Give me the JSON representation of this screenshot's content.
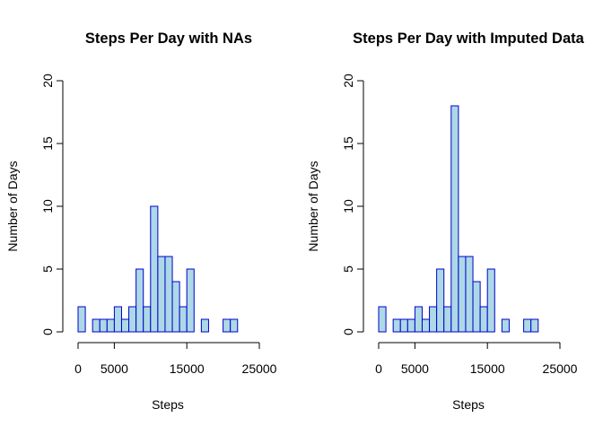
{
  "chart_data": [
    {
      "type": "bar",
      "title": "Steps Per Day with NAs",
      "xlabel": "Steps",
      "ylabel": "Number of Days",
      "xlim": [
        0,
        25000
      ],
      "ylim": [
        0,
        20
      ],
      "x_ticks": [
        "0",
        "5000",
        "15000",
        "25000"
      ],
      "y_ticks": [
        "0",
        "5",
        "10",
        "15",
        "20"
      ],
      "bin_width": 1000,
      "bin_start": 0,
      "values": [
        2,
        0,
        1,
        1,
        1,
        2,
        1,
        2,
        5,
        2,
        10,
        6,
        6,
        4,
        2,
        5,
        0,
        1,
        0,
        0,
        1,
        1
      ],
      "bar_fill": "#add8e6",
      "bar_stroke": "#0000cd",
      "grid": false
    },
    {
      "type": "bar",
      "title": "Steps Per Day with Imputed Data",
      "xlabel": "Steps",
      "ylabel": "Number of Days",
      "xlim": [
        0,
        25000
      ],
      "ylim": [
        0,
        20
      ],
      "x_ticks": [
        "0",
        "5000",
        "15000",
        "25000"
      ],
      "y_ticks": [
        "0",
        "5",
        "10",
        "15",
        "20"
      ],
      "bin_width": 1000,
      "bin_start": 0,
      "values": [
        2,
        0,
        1,
        1,
        1,
        2,
        1,
        2,
        5,
        2,
        18,
        6,
        6,
        4,
        2,
        5,
        0,
        1,
        0,
        0,
        1,
        1
      ],
      "bar_fill": "#add8e6",
      "bar_stroke": "#0000cd",
      "grid": false
    }
  ]
}
